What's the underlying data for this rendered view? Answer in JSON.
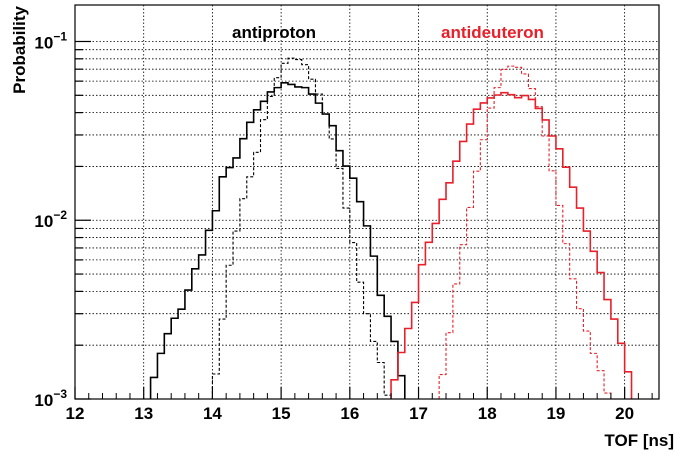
{
  "chart_data": {
    "type": "line",
    "title": "",
    "xlabel": "TOF [ns]",
    "ylabel": "Probability",
    "xlim": [
      12,
      20.5
    ],
    "ylim": [
      0.001,
      0.16
    ],
    "y_scale": "log",
    "grid": true,
    "x_ticks": [
      "12",
      "13",
      "14",
      "15",
      "16",
      "17",
      "18",
      "19",
      "20"
    ],
    "y_ticks": [
      {
        "base": "10",
        "exp": "−3",
        "value": 0.001
      },
      {
        "base": "10",
        "exp": "−2",
        "value": 0.01
      },
      {
        "base": "10",
        "exp": "−1",
        "value": 0.1
      }
    ],
    "annotations": [
      {
        "text": "antiproton",
        "color": "#000000"
      },
      {
        "text": "antideuteron",
        "color": "#e8202a"
      }
    ],
    "bin_width": 0.1,
    "series": [
      {
        "color": "#000000",
        "style": "solid",
        "x": [
          13.1,
          13.2,
          13.3,
          13.4,
          13.5,
          13.6,
          13.7,
          13.8,
          13.9,
          14.0,
          14.1,
          14.2,
          14.3,
          14.4,
          14.5,
          14.6,
          14.7,
          14.8,
          14.9,
          15.0,
          15.1,
          15.2,
          15.3,
          15.4,
          15.5,
          15.6,
          15.7,
          15.8,
          15.9,
          16.0,
          16.1,
          16.2,
          16.3,
          16.4,
          16.5,
          16.6,
          16.7
        ],
        "y": [
          0.00132,
          0.0018,
          0.00232,
          0.00283,
          0.00318,
          0.00407,
          0.00535,
          0.0064,
          0.00878,
          0.0113,
          0.0175,
          0.0197,
          0.0223,
          0.0286,
          0.0353,
          0.0415,
          0.0463,
          0.0522,
          0.0552,
          0.0587,
          0.0575,
          0.0557,
          0.0552,
          0.0508,
          0.0452,
          0.0393,
          0.0338,
          0.0245,
          0.0201,
          0.0172,
          0.0127,
          0.0093,
          0.0063,
          0.0038,
          0.0029,
          0.0021,
          0.00135
        ]
      },
      {
        "color": "#000000",
        "style": "dashed",
        "x": [
          14.0,
          14.1,
          14.2,
          14.3,
          14.4,
          14.5,
          14.6,
          14.7,
          14.8,
          14.9,
          15.0,
          15.1,
          15.2,
          15.3,
          15.4,
          15.5,
          15.6,
          15.7,
          15.8,
          15.9,
          16.0,
          16.1,
          16.2,
          16.3,
          16.4,
          16.5
        ],
        "y": [
          0.00138,
          0.0028,
          0.0056,
          0.0087,
          0.0132,
          0.0175,
          0.024,
          0.0365,
          0.0493,
          0.0627,
          0.0755,
          0.0807,
          0.0792,
          0.0742,
          0.0615,
          0.0508,
          0.0392,
          0.0285,
          0.0195,
          0.0117,
          0.0075,
          0.0045,
          0.003,
          0.0021,
          0.0016,
          0.00105
        ]
      },
      {
        "color": "#e8202a",
        "style": "solid",
        "x": [
          16.6,
          16.7,
          16.8,
          16.9,
          17.0,
          17.1,
          17.2,
          17.3,
          17.4,
          17.5,
          17.6,
          17.7,
          17.8,
          17.9,
          18.0,
          18.1,
          18.2,
          18.3,
          18.4,
          18.5,
          18.6,
          18.7,
          18.8,
          18.9,
          19.0,
          19.1,
          19.2,
          19.3,
          19.4,
          19.5,
          19.6,
          19.7,
          19.8,
          19.9,
          20.0
        ],
        "y": [
          0.00128,
          0.00182,
          0.00248,
          0.00347,
          0.00564,
          0.00753,
          0.0096,
          0.0131,
          0.0162,
          0.0214,
          0.0276,
          0.0345,
          0.0418,
          0.0453,
          0.0483,
          0.0502,
          0.0517,
          0.0504,
          0.0485,
          0.0498,
          0.0474,
          0.0422,
          0.0364,
          0.0296,
          0.0251,
          0.0198,
          0.0153,
          0.0117,
          0.0087,
          0.0067,
          0.0051,
          0.0036,
          0.0028,
          0.00205,
          0.00142
        ]
      },
      {
        "color": "#e8202a",
        "style": "dashed",
        "x": [
          17.3,
          17.4,
          17.5,
          17.6,
          17.7,
          17.8,
          17.9,
          18.0,
          18.1,
          18.2,
          18.3,
          18.4,
          18.5,
          18.6,
          18.7,
          18.8,
          18.9,
          19.0,
          19.1,
          19.2,
          19.3,
          19.4,
          19.5,
          19.6,
          19.7
        ],
        "y": [
          0.00137,
          0.00235,
          0.0044,
          0.0073,
          0.0118,
          0.0188,
          0.0282,
          0.0424,
          0.0552,
          0.0698,
          0.0728,
          0.0717,
          0.0658,
          0.0545,
          0.0432,
          0.0296,
          0.0189,
          0.0121,
          0.0074,
          0.0047,
          0.0032,
          0.0024,
          0.0018,
          0.00144,
          0.00108
        ]
      }
    ]
  }
}
